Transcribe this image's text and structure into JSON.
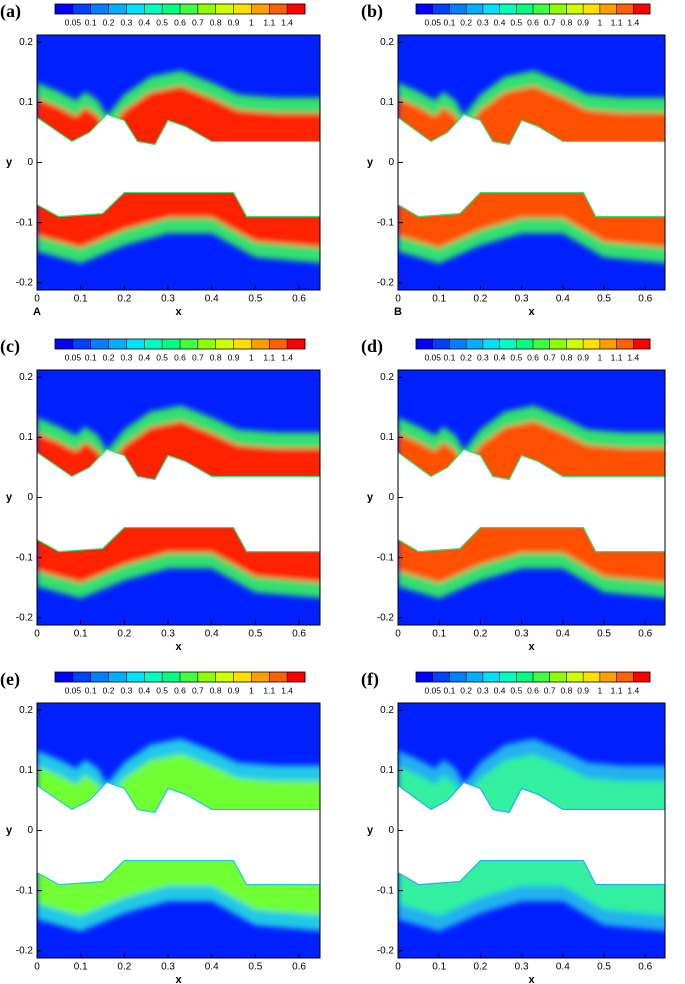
{
  "chart_data": [
    {
      "type": "contour",
      "panel_label": "(a)",
      "corner_label": "A",
      "x_label": "x",
      "y_label": "y",
      "xlim": [
        0,
        0.648
      ],
      "ylim": [
        -0.212,
        0.212
      ],
      "xticks": [
        0,
        0.1,
        0.2,
        0.3,
        0.4,
        0.5,
        0.6
      ],
      "yticks": [
        -0.2,
        -0.1,
        0,
        0.1,
        0.2
      ],
      "colorbar": {
        "ticks": [
          0.05,
          0.1,
          0.2,
          0.3,
          0.4,
          0.5,
          0.6,
          0.7,
          0.8,
          0.9,
          1,
          1.1,
          1.4
        ],
        "colors": [
          "#0000ff",
          "#0040ff",
          "#0080ff",
          "#00b0ff",
          "#00e0ff",
          "#00ffc0",
          "#00ff80",
          "#40ff40",
          "#90ff00",
          "#d0ff00",
          "#ffe000",
          "#ffa000",
          "#ff6000",
          "#ff0000"
        ]
      },
      "field_colors": {
        "background": "#0020ff",
        "edge": "#30e070",
        "core": "#ff2000"
      }
    },
    {
      "type": "contour",
      "panel_label": "(b)",
      "corner_label": "B",
      "x_label": "x",
      "y_label": "y",
      "xlim": [
        0,
        0.648
      ],
      "ylim": [
        -0.212,
        0.212
      ],
      "xticks": [
        0,
        0.1,
        0.2,
        0.3,
        0.4,
        0.5,
        0.6
      ],
      "yticks": [
        -0.2,
        -0.1,
        0,
        0.1,
        0.2
      ],
      "colorbar": {
        "ticks": [
          0.05,
          0.1,
          0.2,
          0.3,
          0.4,
          0.5,
          0.6,
          0.7,
          0.8,
          0.9,
          1,
          1.1,
          1.4
        ],
        "colors": [
          "#0000ff",
          "#0040ff",
          "#0080ff",
          "#00b0ff",
          "#00e0ff",
          "#00ffc0",
          "#00ff80",
          "#40ff40",
          "#90ff00",
          "#d0ff00",
          "#ffe000",
          "#ffa000",
          "#ff6000",
          "#ff0000"
        ]
      },
      "field_colors": {
        "background": "#0020ff",
        "edge": "#30e070",
        "core": "#ff5000"
      }
    },
    {
      "type": "contour",
      "panel_label": "(c)",
      "x_label": "x",
      "y_label": "y",
      "xlim": [
        0,
        0.648
      ],
      "ylim": [
        -0.212,
        0.212
      ],
      "xticks": [
        0,
        0.1,
        0.2,
        0.3,
        0.4,
        0.5,
        0.6
      ],
      "yticks": [
        -0.2,
        -0.1,
        0,
        0.1,
        0.2
      ],
      "colorbar": {
        "ticks": [
          0.05,
          0.1,
          0.2,
          0.3,
          0.4,
          0.5,
          0.6,
          0.7,
          0.8,
          0.9,
          1,
          1.1,
          1.4
        ],
        "colors": [
          "#0000ff",
          "#0040ff",
          "#0080ff",
          "#00b0ff",
          "#00e0ff",
          "#00ffc0",
          "#00ff80",
          "#40ff40",
          "#90ff00",
          "#d0ff00",
          "#ffe000",
          "#ffa000",
          "#ff6000",
          "#ff0000"
        ]
      },
      "field_colors": {
        "background": "#0020ff",
        "edge": "#30e070",
        "core": "#ff2000"
      }
    },
    {
      "type": "contour",
      "panel_label": "(d)",
      "x_label": "x",
      "y_label": "y",
      "xlim": [
        0,
        0.648
      ],
      "ylim": [
        -0.212,
        0.212
      ],
      "xticks": [
        0,
        0.1,
        0.2,
        0.3,
        0.4,
        0.5,
        0.6
      ],
      "yticks": [
        -0.2,
        -0.1,
        0,
        0.1,
        0.2
      ],
      "colorbar": {
        "ticks": [
          0.05,
          0.1,
          0.2,
          0.3,
          0.4,
          0.5,
          0.6,
          0.7,
          0.8,
          0.9,
          1,
          1.1,
          1.4
        ],
        "colors": [
          "#0000ff",
          "#0040ff",
          "#0080ff",
          "#00b0ff",
          "#00e0ff",
          "#00ffc0",
          "#00ff80",
          "#40ff40",
          "#90ff00",
          "#d0ff00",
          "#ffe000",
          "#ffa000",
          "#ff6000",
          "#ff0000"
        ]
      },
      "field_colors": {
        "background": "#0020ff",
        "edge": "#30e070",
        "core": "#ff5000"
      }
    },
    {
      "type": "contour",
      "panel_label": "(e)",
      "x_label": "x",
      "y_label": "y",
      "xlim": [
        0,
        0.648
      ],
      "ylim": [
        -0.212,
        0.212
      ],
      "xticks": [
        0,
        0.1,
        0.2,
        0.3,
        0.4,
        0.5,
        0.6
      ],
      "yticks": [
        -0.2,
        -0.1,
        0,
        0.1,
        0.2
      ],
      "colorbar": {
        "ticks": [
          0.05,
          0.1,
          0.2,
          0.3,
          0.4,
          0.5,
          0.6,
          0.7,
          0.8,
          0.9,
          1,
          1.1,
          1.4
        ],
        "colors": [
          "#0000ff",
          "#0040ff",
          "#0080ff",
          "#00b0ff",
          "#00e0ff",
          "#00ffc0",
          "#00ff80",
          "#40ff40",
          "#90ff00",
          "#d0ff00",
          "#ffe000",
          "#ffa000",
          "#ff6000",
          "#ff0000"
        ]
      },
      "field_colors": {
        "background": "#0020ff",
        "edge": "#20c8e8",
        "core": "#70ff30"
      }
    },
    {
      "type": "contour",
      "panel_label": "(f)",
      "x_label": "x",
      "y_label": "y",
      "xlim": [
        0,
        0.648
      ],
      "ylim": [
        -0.212,
        0.212
      ],
      "xticks": [
        0,
        0.1,
        0.2,
        0.3,
        0.4,
        0.5,
        0.6
      ],
      "yticks": [
        -0.2,
        -0.1,
        0,
        0.1,
        0.2
      ],
      "colorbar": {
        "ticks": [
          0.05,
          0.1,
          0.2,
          0.3,
          0.4,
          0.5,
          0.6,
          0.7,
          0.8,
          0.9,
          1,
          1.1,
          1.4
        ],
        "colors": [
          "#0000ff",
          "#0040ff",
          "#0080ff",
          "#00b0ff",
          "#00e0ff",
          "#00ffc0",
          "#00ff80",
          "#40ff40",
          "#90ff00",
          "#d0ff00",
          "#ffe000",
          "#ffa000",
          "#ff6000",
          "#ff0000"
        ]
      },
      "field_colors": {
        "background": "#0020ff",
        "edge": "#20b0f0",
        "core": "#30f0a0"
      }
    }
  ]
}
